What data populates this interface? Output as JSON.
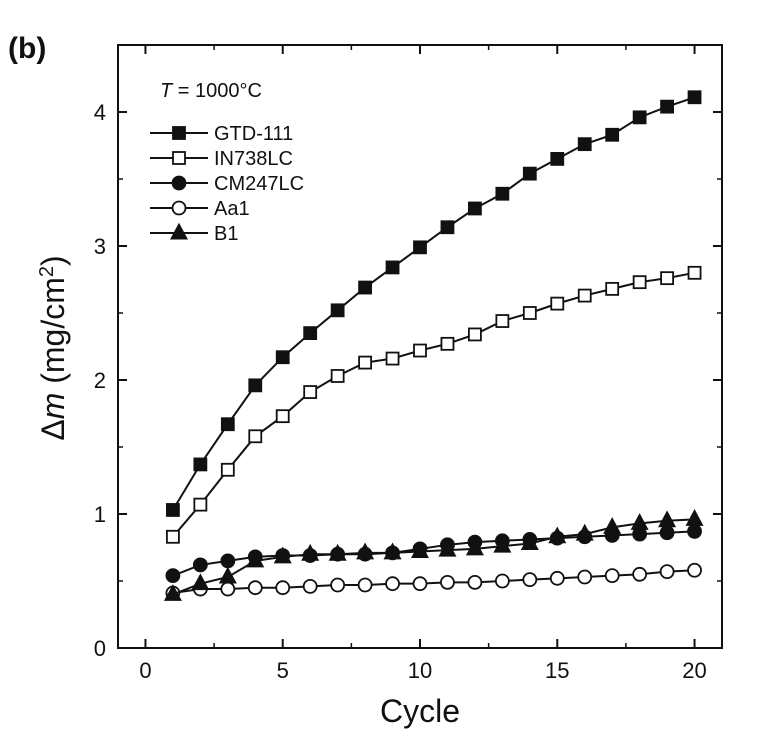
{
  "chart_data": {
    "type": "line",
    "panel_label": "(b)",
    "annotation": {
      "italic": "T",
      "rest": " = 1000°C"
    },
    "xlabel": "Cycle",
    "ylabel": {
      "prefix": "Δ",
      "italic": "m",
      "open": " (mg/cm",
      "sup": "2",
      "close": ")"
    },
    "xlim": [
      -1,
      21
    ],
    "ylim": [
      0,
      4.5
    ],
    "xticks": [
      0,
      5,
      10,
      15,
      20
    ],
    "yticks": [
      0,
      1,
      2,
      3,
      4
    ],
    "x": [
      1,
      2,
      3,
      4,
      5,
      6,
      7,
      8,
      9,
      10,
      11,
      12,
      13,
      14,
      15,
      16,
      17,
      18,
      19,
      20
    ],
    "legend_position": "top-left",
    "grid": false,
    "series": [
      {
        "name": "GTD-111",
        "marker": "square",
        "filled": true,
        "values": [
          1.03,
          1.37,
          1.67,
          1.96,
          2.17,
          2.35,
          2.52,
          2.69,
          2.84,
          2.99,
          3.14,
          3.28,
          3.39,
          3.54,
          3.65,
          3.76,
          3.83,
          3.96,
          4.04,
          4.11
        ]
      },
      {
        "name": "IN738LC",
        "marker": "square",
        "filled": false,
        "values": [
          0.83,
          1.07,
          1.33,
          1.58,
          1.73,
          1.91,
          2.03,
          2.13,
          2.16,
          2.22,
          2.27,
          2.34,
          2.44,
          2.5,
          2.57,
          2.63,
          2.68,
          2.73,
          2.76,
          2.8
        ]
      },
      {
        "name": "CM247LC",
        "marker": "circle",
        "filled": true,
        "values": [
          0.54,
          0.62,
          0.65,
          0.68,
          0.69,
          0.69,
          0.7,
          0.7,
          0.71,
          0.74,
          0.77,
          0.79,
          0.8,
          0.81,
          0.82,
          0.83,
          0.84,
          0.85,
          0.86,
          0.87
        ]
      },
      {
        "name": "Aa1",
        "marker": "circle",
        "filled": false,
        "values": [
          0.41,
          0.44,
          0.44,
          0.45,
          0.45,
          0.46,
          0.47,
          0.47,
          0.48,
          0.48,
          0.49,
          0.49,
          0.5,
          0.51,
          0.52,
          0.53,
          0.54,
          0.55,
          0.57,
          0.58
        ]
      },
      {
        "name": "B1",
        "marker": "triangle",
        "filled": true,
        "values": [
          0.4,
          0.48,
          0.53,
          0.65,
          0.68,
          0.7,
          0.7,
          0.71,
          0.71,
          0.72,
          0.73,
          0.74,
          0.76,
          0.78,
          0.83,
          0.85,
          0.9,
          0.93,
          0.95,
          0.96
        ]
      }
    ]
  }
}
